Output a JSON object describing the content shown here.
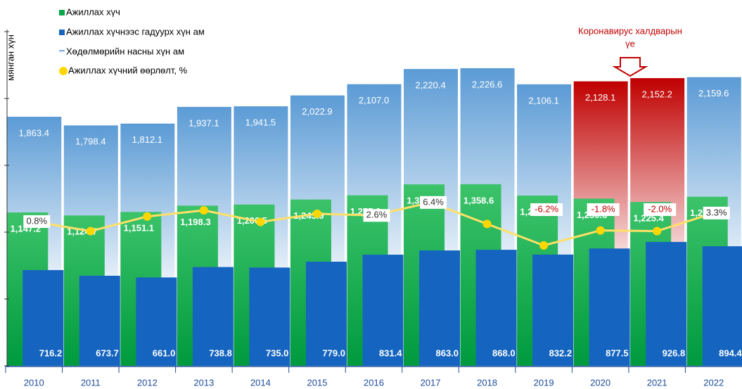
{
  "chart_data": {
    "type": "bar",
    "y_label": "мянган хүн",
    "categories": [
      "2010",
      "2011",
      "2012",
      "2013",
      "2014",
      "2015",
      "2016",
      "2017",
      "2018",
      "2019",
      "2020",
      "2021",
      "2022"
    ],
    "series": [
      {
        "name": "Ажиллах хүч",
        "color": "#0aa64a",
        "values": [
          1147.2,
          1124.7,
          1151.1,
          1198.3,
          1206.5,
          1243.9,
          1275.6,
          1357.4,
          1358.6,
          1273.9,
          1250.6,
          1225.4,
          1265.2
        ],
        "value_labels": [
          "1,147.2",
          "1,124.7",
          "1,151.1",
          "1,198.3",
          "1,206.5",
          "1,243.9",
          "1,275.6",
          "1,357.4",
          "1,358.6",
          "1,273.9",
          "1,250.6",
          "1,225.4",
          "1,265.2"
        ]
      },
      {
        "name": "Ажиллах хүчнээс гадуурх хүн ам",
        "color": "#1565c0",
        "values": [
          716.2,
          673.7,
          661.0,
          738.8,
          735.0,
          779.0,
          831.4,
          863.0,
          868.0,
          832.2,
          877.5,
          926.8,
          894.4
        ],
        "value_labels": [
          "716.2",
          "673.7",
          "661.0",
          "738.8",
          "735.0",
          "779.0",
          "831.4",
          "863.0",
          "868.0",
          "832.2",
          "877.5",
          "926.8",
          "894.4"
        ]
      },
      {
        "name": "Хөдөлмөрийн насны хүн ам",
        "color": "#5b9bd5",
        "values": [
          1863.4,
          1798.4,
          1812.1,
          1937.1,
          1941.5,
          2022.9,
          2107.0,
          2220.4,
          2226.6,
          2106.1,
          2128.1,
          2152.2,
          2159.6
        ],
        "value_labels": [
          "1,863.4",
          "1,798.4",
          "1,812.1",
          "1,937.1",
          "1,941.5",
          "2,022.9",
          "2,107.0",
          "2,220.4",
          "2,226.6",
          "2,106.1",
          "2,128.1",
          "2,152.2",
          "2,159.6"
        ]
      },
      {
        "name": "Ажиллах хүчний өөрлөлт, %",
        "color": "#ffd700",
        "type": "line",
        "axis": "y2",
        "values": [
          0.8,
          -2.0,
          2.3,
          4.1,
          0.7,
          3.1,
          2.6,
          6.4,
          0.1,
          -6.2,
          -1.8,
          -2.0,
          3.3
        ],
        "value_labels": [
          "0.8%",
          null,
          null,
          null,
          null,
          null,
          "2.6%",
          "6.4%",
          null,
          "-6.2%",
          "-1.8%",
          "-2.0%",
          "3.3%"
        ]
      }
    ],
    "ylim": [
      0,
      2500
    ],
    "yticks": [
      0,
      500,
      1000,
      1500,
      2000,
      2500
    ],
    "y2lim": [
      -41.5,
      56.5
    ],
    "highlight": {
      "from": "2020",
      "to": "2021",
      "color": "#c00000"
    },
    "annotation": {
      "lines": [
        "Коронавирус халдварын",
        "үе"
      ],
      "color": "#c00000"
    }
  }
}
